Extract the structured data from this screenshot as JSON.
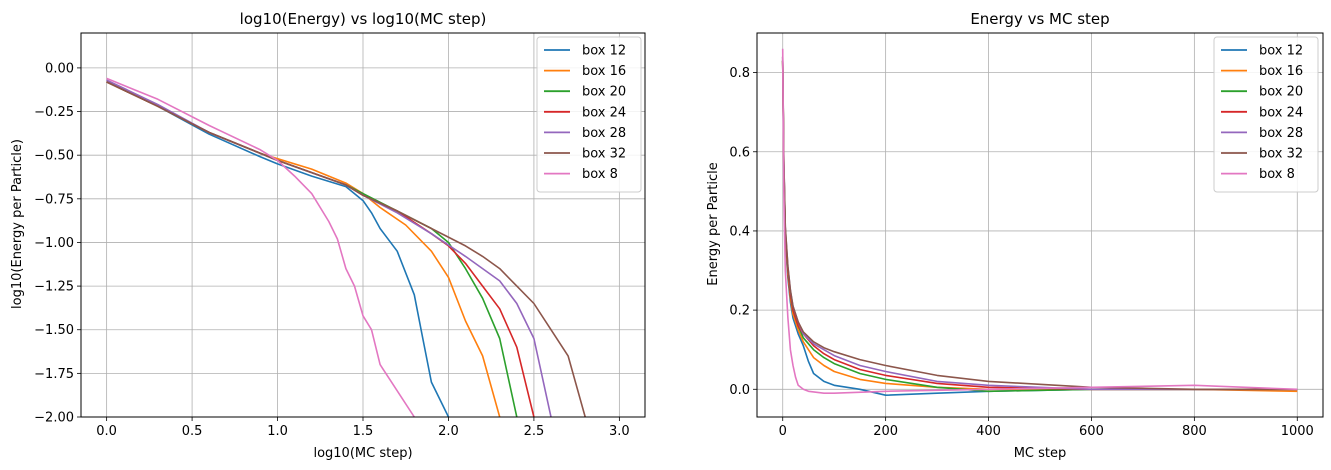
{
  "chart_data": [
    {
      "type": "line",
      "title": "log10(Energy) vs log10(MC step)",
      "xlabel": "log10(MC step)",
      "ylabel": "log10(Energy per Particle)",
      "xlim": [
        -0.15,
        3.15
      ],
      "ylim": [
        -2.0,
        0.2
      ],
      "xticks": [
        0.0,
        0.5,
        1.0,
        1.5,
        2.0,
        2.5,
        3.0
      ],
      "xtick_labels": [
        "0.0",
        "0.5",
        "1.0",
        "1.5",
        "2.0",
        "2.5",
        "3.0"
      ],
      "yticks": [
        -2.0,
        -1.75,
        -1.5,
        -1.25,
        -1.0,
        -0.75,
        -0.5,
        -0.25,
        0.0
      ],
      "ytick_labels": [
        "−2.00",
        "−1.75",
        "−1.50",
        "−1.25",
        "−1.00",
        "−0.75",
        "−0.50",
        "−0.25",
        "0.00"
      ],
      "grid": true,
      "legend_position": "top-right",
      "series": [
        {
          "name": "box 12",
          "color": "#1f77b4",
          "x": [
            0.0,
            0.3,
            0.6,
            0.9,
            1.0,
            1.2,
            1.4,
            1.5,
            1.55,
            1.6,
            1.7,
            1.8,
            1.85,
            1.9,
            2.0
          ],
          "y": [
            -0.08,
            -0.22,
            -0.38,
            -0.51,
            -0.55,
            -0.62,
            -0.68,
            -0.76,
            -0.83,
            -0.92,
            -1.05,
            -1.3,
            -1.55,
            -1.8,
            -2.0
          ]
        },
        {
          "name": "box 16",
          "color": "#ff7f0e",
          "x": [
            0.0,
            0.3,
            0.6,
            0.9,
            1.0,
            1.2,
            1.4,
            1.5,
            1.6,
            1.75,
            1.9,
            2.0,
            2.1,
            2.2,
            2.3
          ],
          "y": [
            -0.08,
            -0.22,
            -0.37,
            -0.49,
            -0.52,
            -0.58,
            -0.66,
            -0.72,
            -0.8,
            -0.9,
            -1.05,
            -1.2,
            -1.45,
            -1.65,
            -2.0
          ]
        },
        {
          "name": "box 20",
          "color": "#2ca02c",
          "x": [
            0.0,
            0.3,
            0.6,
            0.9,
            1.0,
            1.2,
            1.4,
            1.5,
            1.7,
            1.9,
            2.0,
            2.1,
            2.2,
            2.3,
            2.4
          ],
          "y": [
            -0.08,
            -0.22,
            -0.37,
            -0.49,
            -0.53,
            -0.6,
            -0.67,
            -0.72,
            -0.82,
            -0.92,
            -1.0,
            -1.15,
            -1.32,
            -1.55,
            -2.0
          ]
        },
        {
          "name": "box 24",
          "color": "#d62728",
          "x": [
            0.0,
            0.3,
            0.6,
            0.9,
            1.0,
            1.2,
            1.4,
            1.5,
            1.7,
            1.9,
            2.0,
            2.1,
            2.2,
            2.3,
            2.4,
            2.5
          ],
          "y": [
            -0.08,
            -0.22,
            -0.37,
            -0.49,
            -0.53,
            -0.6,
            -0.67,
            -0.73,
            -0.82,
            -0.95,
            -1.02,
            -1.12,
            -1.25,
            -1.38,
            -1.6,
            -2.0
          ]
        },
        {
          "name": "box 28",
          "color": "#9467bd",
          "x": [
            0.0,
            0.3,
            0.6,
            0.9,
            1.0,
            1.2,
            1.4,
            1.5,
            1.7,
            1.9,
            2.1,
            2.2,
            2.3,
            2.4,
            2.5,
            2.6
          ],
          "y": [
            -0.07,
            -0.21,
            -0.37,
            -0.49,
            -0.53,
            -0.6,
            -0.67,
            -0.73,
            -0.83,
            -0.95,
            -1.08,
            -1.15,
            -1.22,
            -1.35,
            -1.55,
            -2.0
          ]
        },
        {
          "name": "box 32",
          "color": "#8c564b",
          "x": [
            0.0,
            0.3,
            0.6,
            0.9,
            1.0,
            1.2,
            1.4,
            1.5,
            1.7,
            1.9,
            2.1,
            2.2,
            2.3,
            2.4,
            2.5,
            2.6,
            2.7,
            2.8
          ],
          "y": [
            -0.08,
            -0.22,
            -0.37,
            -0.49,
            -0.53,
            -0.6,
            -0.67,
            -0.73,
            -0.82,
            -0.92,
            -1.02,
            -1.08,
            -1.15,
            -1.25,
            -1.35,
            -1.5,
            -1.65,
            -2.0
          ]
        },
        {
          "name": "box 8",
          "color": "#e377c2",
          "x": [
            0.0,
            0.3,
            0.6,
            0.9,
            1.0,
            1.1,
            1.2,
            1.3,
            1.35,
            1.4,
            1.45,
            1.5,
            1.55,
            1.6,
            1.7,
            1.8
          ],
          "y": [
            -0.06,
            -0.18,
            -0.33,
            -0.47,
            -0.53,
            -0.62,
            -0.72,
            -0.88,
            -0.98,
            -1.15,
            -1.25,
            -1.42,
            -1.5,
            -1.7,
            -1.85,
            -2.0
          ]
        }
      ]
    },
    {
      "type": "line",
      "title": "Energy vs MC step",
      "xlabel": "MC step",
      "ylabel": "Energy per Particle",
      "xlim": [
        -50,
        1050
      ],
      "ylim": [
        -0.07,
        0.9
      ],
      "xticks": [
        0,
        200,
        400,
        600,
        800,
        1000
      ],
      "xtick_labels": [
        "0",
        "200",
        "400",
        "600",
        "800",
        "1000"
      ],
      "yticks": [
        0.0,
        0.2,
        0.4,
        0.6,
        0.8
      ],
      "ytick_labels": [
        "0.0",
        "0.2",
        "0.4",
        "0.6",
        "0.8"
      ],
      "grid": true,
      "legend_position": "top-right",
      "series": [
        {
          "name": "box 12",
          "color": "#1f77b4",
          "x": [
            0,
            2,
            5,
            10,
            15,
            20,
            30,
            40,
            50,
            60,
            80,
            100,
            150,
            200,
            300,
            400,
            600,
            800,
            1000
          ],
          "y": [
            0.83,
            0.55,
            0.38,
            0.28,
            0.22,
            0.18,
            0.14,
            0.11,
            0.07,
            0.04,
            0.02,
            0.01,
            0.0,
            -0.015,
            -0.01,
            -0.005,
            0.0,
            0.0,
            0.0
          ]
        },
        {
          "name": "box 16",
          "color": "#ff7f0e",
          "x": [
            0,
            2,
            5,
            10,
            15,
            20,
            30,
            40,
            60,
            80,
            100,
            150,
            200,
            300,
            400,
            600,
            800,
            1000
          ],
          "y": [
            0.83,
            0.56,
            0.39,
            0.29,
            0.23,
            0.19,
            0.15,
            0.12,
            0.08,
            0.06,
            0.045,
            0.025,
            0.015,
            0.005,
            0.0,
            0.0,
            0.0,
            -0.005
          ]
        },
        {
          "name": "box 20",
          "color": "#2ca02c",
          "x": [
            0,
            2,
            5,
            10,
            15,
            20,
            30,
            40,
            60,
            80,
            100,
            150,
            200,
            300,
            400,
            600,
            800,
            1000
          ],
          "y": [
            0.83,
            0.57,
            0.4,
            0.3,
            0.24,
            0.2,
            0.16,
            0.13,
            0.1,
            0.08,
            0.065,
            0.04,
            0.025,
            0.005,
            -0.005,
            0.0,
            0.0,
            0.0
          ]
        },
        {
          "name": "box 24",
          "color": "#d62728",
          "x": [
            0,
            2,
            5,
            10,
            15,
            20,
            30,
            40,
            60,
            80,
            100,
            150,
            200,
            300,
            400,
            600,
            800,
            1000
          ],
          "y": [
            0.83,
            0.57,
            0.4,
            0.3,
            0.24,
            0.2,
            0.16,
            0.14,
            0.11,
            0.09,
            0.075,
            0.05,
            0.035,
            0.015,
            0.005,
            0.0,
            0.0,
            0.0
          ]
        },
        {
          "name": "box 28",
          "color": "#9467bd",
          "x": [
            0,
            2,
            5,
            10,
            15,
            20,
            30,
            40,
            60,
            80,
            100,
            150,
            200,
            300,
            400,
            600,
            800,
            1000
          ],
          "y": [
            0.84,
            0.58,
            0.41,
            0.31,
            0.25,
            0.21,
            0.17,
            0.14,
            0.115,
            0.1,
            0.085,
            0.06,
            0.045,
            0.02,
            0.01,
            0.0,
            0.0,
            0.0
          ]
        },
        {
          "name": "box 32",
          "color": "#8c564b",
          "x": [
            0,
            2,
            5,
            10,
            15,
            20,
            30,
            40,
            60,
            80,
            100,
            150,
            200,
            300,
            400,
            600,
            800,
            1000
          ],
          "y": [
            0.84,
            0.58,
            0.41,
            0.31,
            0.25,
            0.21,
            0.17,
            0.145,
            0.12,
            0.105,
            0.095,
            0.075,
            0.06,
            0.035,
            0.02,
            0.005,
            0.0,
            0.0
          ]
        },
        {
          "name": "box 8",
          "color": "#e377c2",
          "x": [
            0,
            2,
            5,
            10,
            15,
            20,
            25,
            30,
            40,
            50,
            80,
            100,
            200,
            400,
            600,
            800,
            1000
          ],
          "y": [
            0.86,
            0.5,
            0.3,
            0.18,
            0.1,
            0.06,
            0.03,
            0.01,
            0.0,
            -0.005,
            -0.01,
            -0.01,
            -0.005,
            0.0,
            0.005,
            0.01,
            0.0
          ]
        }
      ]
    }
  ]
}
